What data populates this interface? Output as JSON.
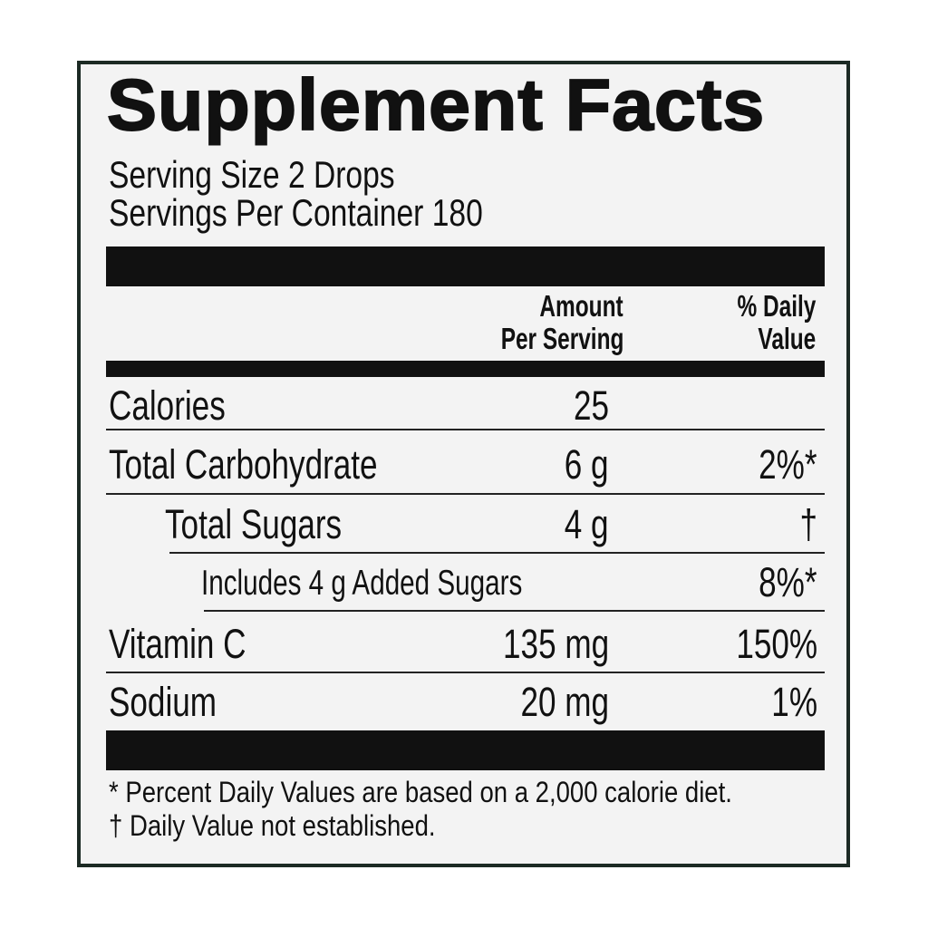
{
  "title": "Supplement Facts",
  "serving_size": "Serving Size 2 Drops",
  "servings_per_container": "Servings Per Container 180",
  "header": {
    "amount_line1": "Amount",
    "amount_line2": "Per Serving",
    "dv_line1": "% Daily",
    "dv_line2": "Value"
  },
  "rows": [
    {
      "name": "Calories",
      "amount": "25",
      "dv": ""
    },
    {
      "name": "Total Carbohydrate",
      "amount": "6 g",
      "dv": "2%*"
    },
    {
      "name": "Total Sugars",
      "amount": "4 g",
      "dv": "†"
    },
    {
      "name": "Includes 4 g Added Sugars",
      "amount": "",
      "dv": "8%*"
    },
    {
      "name": "Vitamin C",
      "amount": "135 mg",
      "dv": "150%"
    },
    {
      "name": "Sodium",
      "amount": "20 mg",
      "dv": "1%"
    }
  ],
  "footnotes": [
    "* Percent Daily Values are based on a 2,000 calorie diet.",
    "† Daily Value not established."
  ]
}
